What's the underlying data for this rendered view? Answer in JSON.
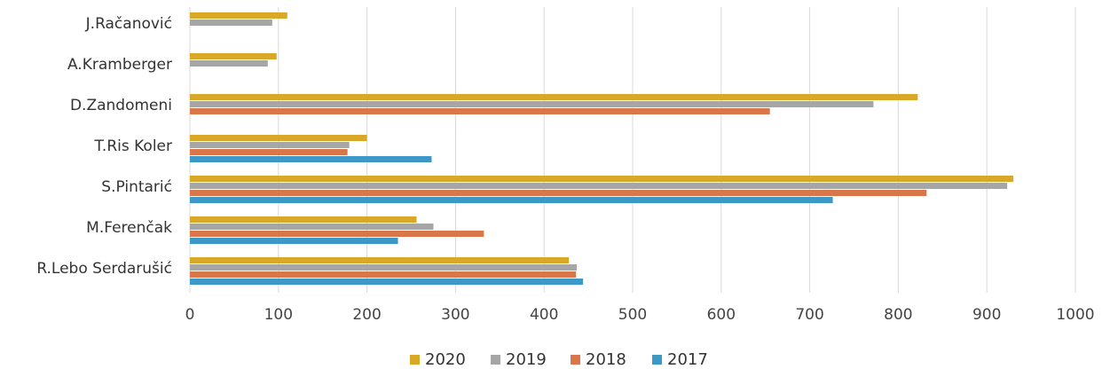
{
  "chart_data": {
    "type": "bar",
    "orientation": "horizontal",
    "categories": [
      "J.Račanović",
      "A.Kramberger",
      "D.Zandomeni",
      "T.Ris Koler",
      "S.Pintarić",
      "M.Ferenčak",
      "R.Lebo Serdarušić"
    ],
    "series": [
      {
        "name": "2020",
        "color": "#D9A827",
        "values": [
          110,
          98,
          822,
          200,
          930,
          256,
          428
        ]
      },
      {
        "name": "2019",
        "color": "#A6A6A6",
        "values": [
          93,
          88,
          772,
          180,
          923,
          275,
          437
        ]
      },
      {
        "name": "2018",
        "color": "#D9774A",
        "values": [
          null,
          null,
          655,
          178,
          832,
          332,
          436
        ]
      },
      {
        "name": "2017",
        "color": "#3C98C6",
        "values": [
          null,
          null,
          null,
          273,
          726,
          235,
          444
        ]
      }
    ],
    "xlim": [
      0,
      1000
    ],
    "xticks": [
      "0",
      "100",
      "200",
      "300",
      "400",
      "500",
      "600",
      "700",
      "800",
      "900",
      "1000"
    ],
    "grid": "vertical",
    "legend": "bottom"
  }
}
